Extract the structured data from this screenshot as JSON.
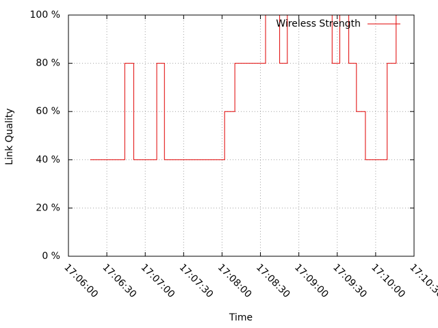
{
  "chart_data": {
    "type": "line",
    "step": true,
    "xlabel": "Time",
    "ylabel": "Link Quality",
    "x": [
      "17:06:17",
      "17:06:44",
      "17:06:51",
      "17:07:09",
      "17:07:15",
      "17:08:02",
      "17:08:10",
      "17:08:34",
      "17:08:45",
      "17:08:51",
      "17:09:26",
      "17:09:32",
      "17:09:39",
      "17:09:45",
      "17:09:52",
      "17:10:09",
      "17:10:16"
    ],
    "series": [
      {
        "name": "Wireless Strength",
        "color": "#e00000",
        "values": [
          40,
          80,
          40,
          80,
          40,
          60,
          80,
          100,
          80,
          100,
          80,
          100,
          80,
          60,
          40,
          80,
          100
        ]
      }
    ],
    "xlim": [
      "17:06:00",
      "17:10:30"
    ],
    "xticks": [
      "17:06:00",
      "17:06:30",
      "17:07:00",
      "17:07:30",
      "17:08:00",
      "17:08:30",
      "17:09:00",
      "17:09:30",
      "17:10:00",
      "17:10:30"
    ],
    "ylim": [
      0,
      100
    ],
    "yticks": [
      {
        "value": 0,
        "label": "0 %"
      },
      {
        "value": 20,
        "label": "20 %"
      },
      {
        "value": 40,
        "label": "40 %"
      },
      {
        "value": 60,
        "label": "60 %"
      },
      {
        "value": 80,
        "label": "80 %"
      },
      {
        "value": 100,
        "label": "100 %"
      }
    ],
    "grid": true,
    "legend": "top-right"
  }
}
